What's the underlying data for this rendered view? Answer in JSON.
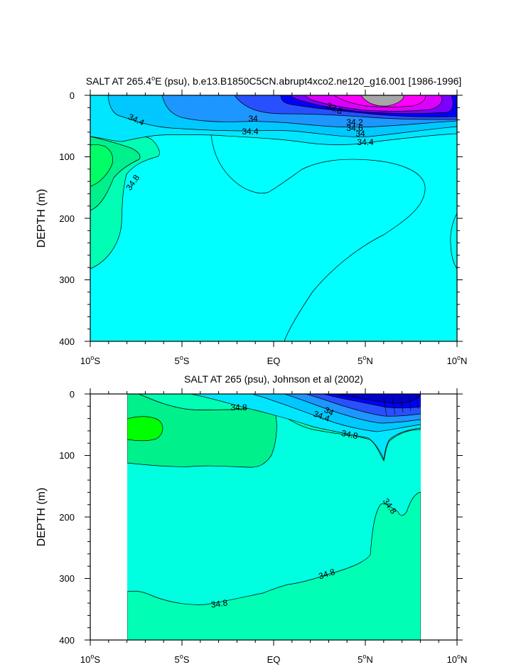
{
  "chart_data": [
    {
      "type": "contour",
      "title": "SALT AT 265.4°E (psu), b.e13.B1850C5CN.abrupt4xco2.ne120_g16.001 [1986-1996]",
      "title_parts": [
        "SALT AT 265.4",
        "o",
        "E (psu), b.e13.B1850C5CN.abrupt4xco2.ne120_g16.001 [1986-1996]"
      ],
      "ylabel": "DEPTH (m)",
      "xlim": [
        -10,
        10
      ],
      "ylim": [
        0,
        400
      ],
      "y_reversed": true,
      "x_ticks": [
        {
          "value": -10,
          "num": "10",
          "deg": "o",
          "hemi": "S"
        },
        {
          "value": -5,
          "num": "5",
          "deg": "o",
          "hemi": "S"
        },
        {
          "value": 0,
          "num": "EQ",
          "deg": "",
          "hemi": ""
        },
        {
          "value": 5,
          "num": "5",
          "deg": "o",
          "hemi": "N"
        },
        {
          "value": 10,
          "num": "10",
          "deg": "o",
          "hemi": "N"
        }
      ],
      "y_ticks": [
        "0",
        "100",
        "200",
        "300",
        "400"
      ],
      "contour_labels": [
        "34.4",
        "34",
        "34.4",
        "34.8",
        "32.8",
        "34.2",
        "34.6",
        "34",
        "34.4"
      ],
      "fill_colors": {
        "background": "#00FFFF",
        "freshest": "#A6A6A6",
        "salty": "#00FF66"
      }
    },
    {
      "type": "contour",
      "title": "SALT AT 265 (psu), Johnson et al (2002)",
      "ylabel": "DEPTH (m)",
      "xlim": [
        -10,
        10
      ],
      "ylim": [
        0,
        400
      ],
      "data_xlim": [
        -8,
        8
      ],
      "y_reversed": true,
      "x_ticks": [
        {
          "value": -10,
          "num": "10",
          "deg": "o",
          "hemi": "S"
        },
        {
          "value": -5,
          "num": "5",
          "deg": "o",
          "hemi": "S"
        },
        {
          "value": 0,
          "num": "EQ",
          "deg": "",
          "hemi": ""
        },
        {
          "value": 5,
          "num": "5",
          "deg": "o",
          "hemi": "N"
        },
        {
          "value": 10,
          "num": "10",
          "deg": "o",
          "hemi": "N"
        }
      ],
      "y_ticks": [
        "0",
        "100",
        "200",
        "300",
        "400"
      ],
      "contour_labels": [
        "34.8",
        "34",
        "34.4",
        "34.8",
        "34.8",
        "34.8",
        "34.8"
      ],
      "fill_colors": {
        "background": "#00FFE0",
        "salty": "#00FF00"
      }
    }
  ]
}
